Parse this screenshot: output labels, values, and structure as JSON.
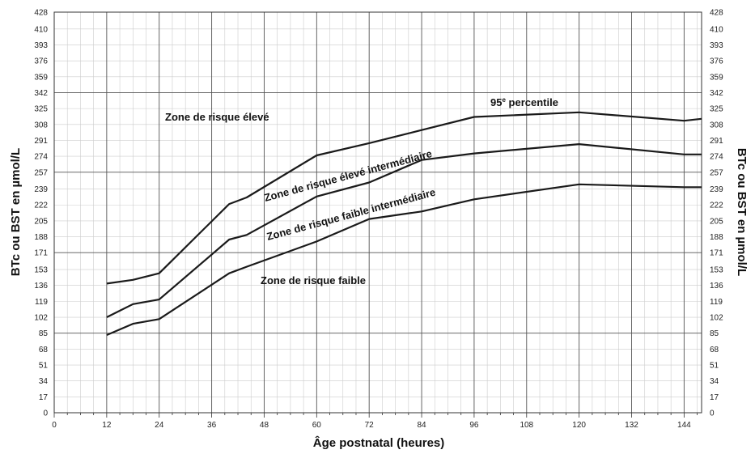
{
  "chart_data": {
    "type": "line",
    "title": "",
    "xlabel": "Âge postnatal (heures)",
    "ylabel_left": "BTc ou BST en µmol/L",
    "ylabel_right": "BTc ou BST en µmol/L",
    "xlim": [
      0,
      148
    ],
    "ylim": [
      0,
      428
    ],
    "x_ticks": [
      0,
      12,
      24,
      36,
      48,
      60,
      72,
      84,
      96,
      108,
      120,
      132,
      144
    ],
    "y_ticks": [
      0,
      17,
      34,
      51,
      68,
      85,
      102,
      119,
      136,
      153,
      171,
      188,
      205,
      222,
      239,
      257,
      274,
      291,
      308,
      325,
      342,
      359,
      376,
      393,
      410,
      428
    ],
    "grid": true,
    "series": [
      {
        "name": "95e percentile",
        "x": [
          12,
          18,
          24,
          40,
          44,
          60,
          72,
          84,
          96,
          120,
          144,
          148
        ],
        "y": [
          138,
          142,
          149,
          223,
          230,
          275,
          288,
          302,
          316,
          321,
          312,
          314
        ]
      },
      {
        "name": "",
        "x": [
          12,
          18,
          24,
          40,
          44,
          60,
          72,
          84,
          96,
          120,
          144,
          148
        ],
        "y": [
          102,
          116,
          121,
          185,
          190,
          231,
          246,
          270,
          277,
          287,
          276,
          276
        ]
      },
      {
        "name": "",
        "x": [
          12,
          18,
          24,
          40,
          44,
          60,
          72,
          84,
          96,
          120,
          144,
          148
        ],
        "y": [
          83,
          95,
          100,
          149,
          156,
          183,
          207,
          215,
          228,
          244,
          241,
          241
        ]
      }
    ],
    "annotations": {
      "p95_main": "95",
      "p95_sup": "e",
      "p95_rest": " percentile",
      "zone_high": "Zone de risque élevé",
      "zone_high_int": "Zone de risque élevé intermédiaire",
      "zone_low_int": "Zone de risque faible intermédiaire",
      "zone_low": "Zone de risque faible"
    },
    "colors": {
      "line": "#1a1a1a",
      "grid_major": "#555555",
      "grid_minor": "#cccccc"
    }
  }
}
